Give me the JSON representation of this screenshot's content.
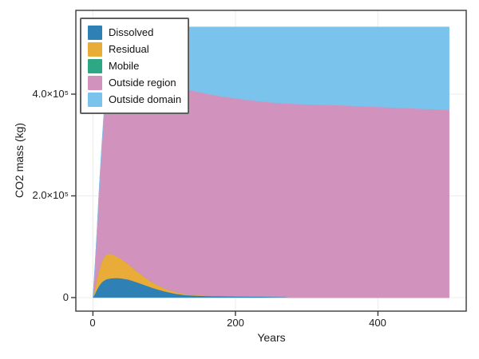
{
  "style": {
    "background": "#ffffff",
    "spine_color": "#3a3a3a",
    "grid_color": "#ededed",
    "text_color": "#1c1c1c",
    "legend_border_color": "#5f5f5f"
  },
  "chart_data": {
    "type": "area",
    "stacked": true,
    "title": "",
    "xlabel": "Years",
    "ylabel": "CO2 mass (kg)",
    "xlim": [
      -24,
      524
    ],
    "ylim": [
      -26700,
      564700
    ],
    "grid": true,
    "legend_position": "top-left",
    "x_ticks": [
      {
        "value": 0,
        "label": "0"
      },
      {
        "value": 200,
        "label": "200"
      },
      {
        "value": 400,
        "label": "400"
      }
    ],
    "y_ticks": [
      {
        "value": 0,
        "label": "0"
      },
      {
        "value": 200000,
        "label": "2.0×10⁵"
      },
      {
        "value": 400000,
        "label": "4.0×10⁵"
      }
    ],
    "x": [
      0,
      3,
      6,
      9,
      12,
      15,
      18,
      21,
      25,
      30,
      35,
      40,
      50,
      60,
      70,
      80,
      90,
      100,
      115,
      130,
      150,
      175,
      200,
      225,
      250,
      270,
      280,
      300,
      350,
      400,
      450,
      500
    ],
    "series": [
      {
        "name": "Dissolved",
        "color": "#2E80B5",
        "values": [
          0,
          8000,
          17000,
          24000,
          29500,
          33000,
          35500,
          37000,
          38000,
          38500,
          38500,
          38000,
          35500,
          31000,
          26000,
          21000,
          16500,
          12500,
          8000,
          5000,
          3500,
          2800,
          2400,
          2200,
          1800,
          1200,
          0,
          0,
          0,
          0,
          0,
          0
        ]
      },
      {
        "name": "Residual",
        "color": "#EAAC38",
        "values": [
          0,
          11000,
          22000,
          32000,
          40000,
          45500,
          48500,
          49000,
          48000,
          45000,
          41500,
          38000,
          30000,
          23000,
          17000,
          12000,
          8500,
          6000,
          3500,
          2000,
          1000,
          400,
          200,
          0,
          0,
          0,
          0,
          0,
          0,
          0,
          0,
          0
        ]
      },
      {
        "name": "Mobile",
        "color": "#2EA784",
        "values": [
          0,
          0,
          0,
          0,
          0,
          0,
          0,
          0,
          0,
          0,
          0,
          0,
          0,
          0,
          0,
          0,
          0,
          0,
          0,
          0,
          0,
          0,
          0,
          0,
          0,
          0,
          0,
          0,
          0,
          0,
          0,
          0
        ]
      },
      {
        "name": "Outside region",
        "color": "#D292BE",
        "values": [
          0,
          46000,
          99000,
          161000,
          216500,
          271500,
          316000,
          349000,
          379000,
          398500,
          392000,
          388000,
          386500,
          388000,
          391000,
          395000,
          398000,
          400500,
          402500,
          403000,
          399500,
          393800,
          389400,
          385300,
          382200,
          380800,
          381000,
          380000,
          378000,
          375000,
          372000,
          369000
        ]
      },
      {
        "name": "Outside domain",
        "color": "#7AC3EC",
        "values": [
          0,
          0,
          2000,
          3000,
          4000,
          5000,
          10000,
          20000,
          35000,
          50000,
          60000,
          68000,
          80000,
          90000,
          98000,
          104000,
          109000,
          113000,
          118000,
          122000,
          128000,
          135000,
          140000,
          144500,
          148000,
          150000,
          151000,
          152000,
          154000,
          157000,
          160000,
          163000
        ]
      }
    ]
  }
}
